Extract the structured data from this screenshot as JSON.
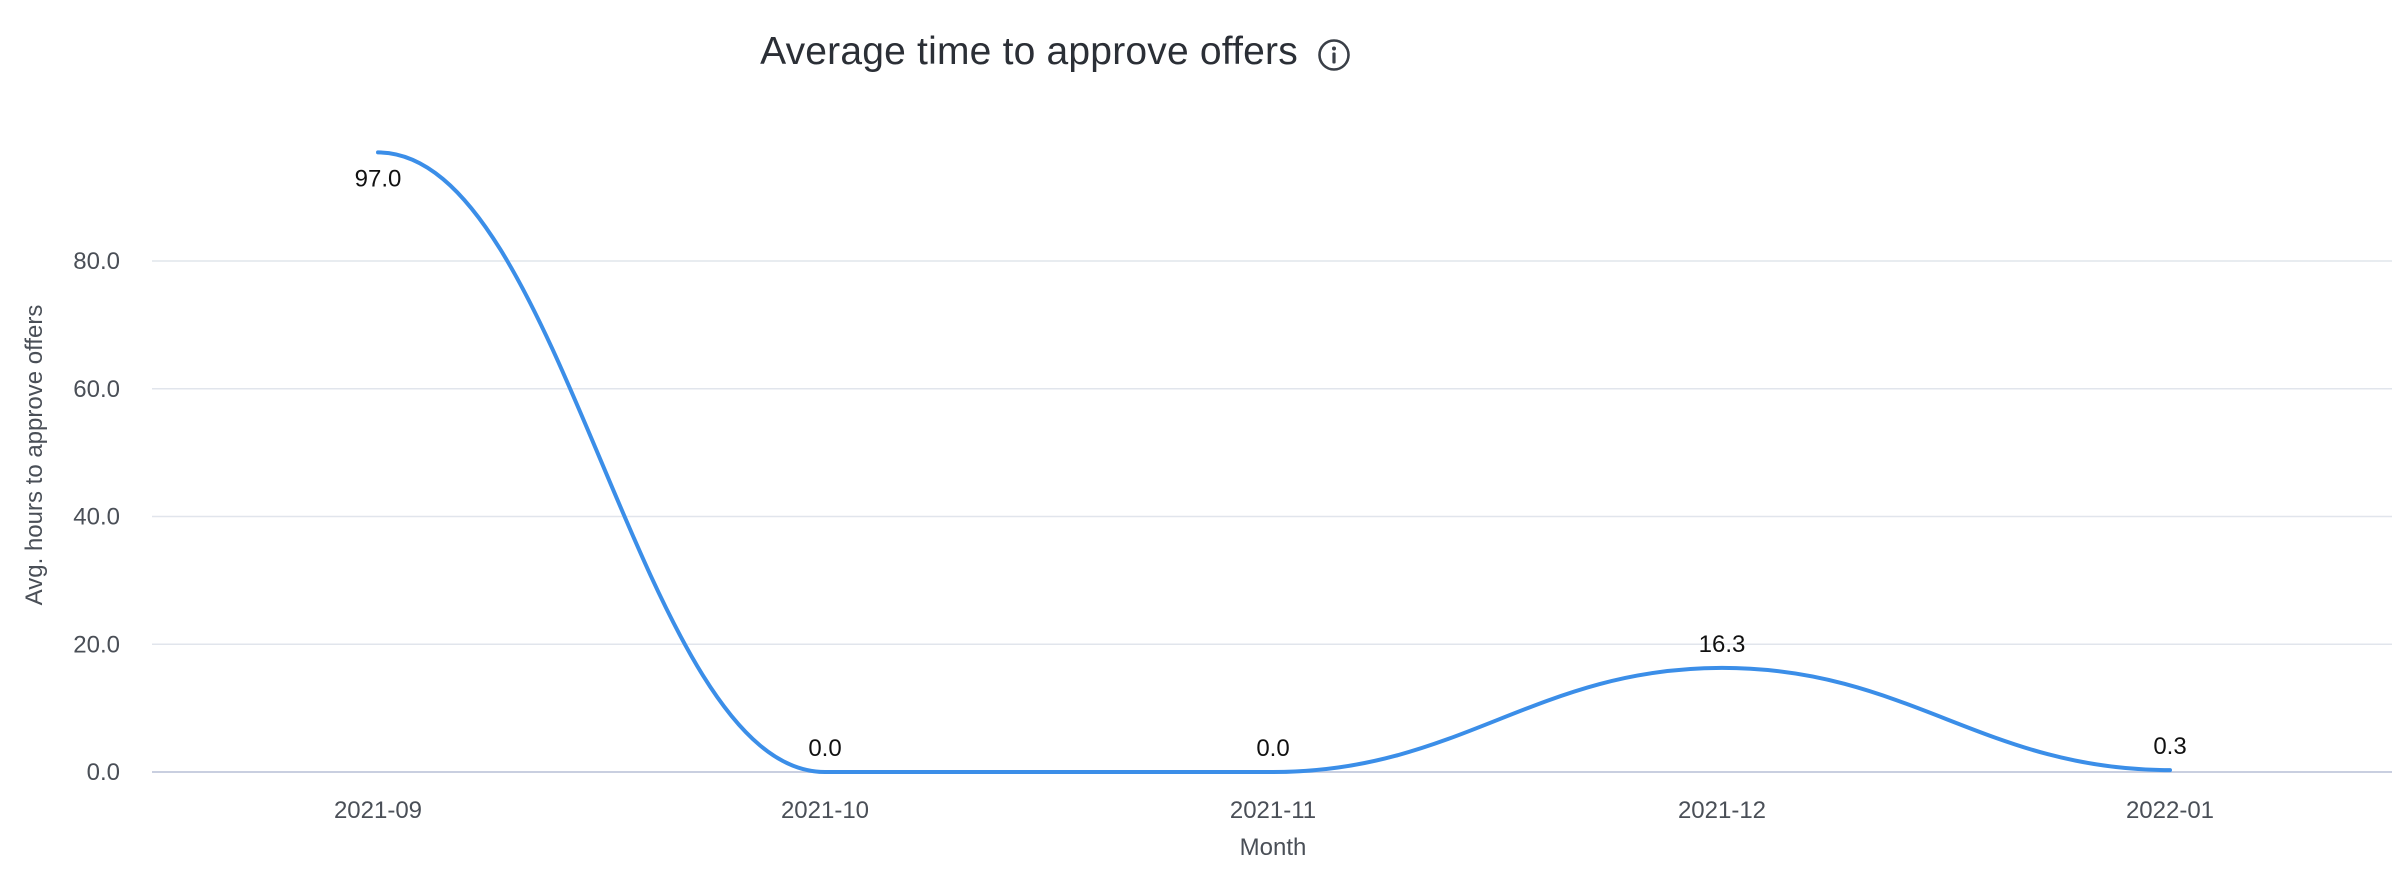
{
  "title": "Average time to approve offers",
  "icons": {
    "info": "info-icon"
  },
  "colors": {
    "line": "#3b8ee8",
    "grid": "#e1e5ec",
    "baseline": "#c9cfe0",
    "tick_text": "#4a4f57",
    "label_text": "#111111"
  },
  "chart_data": {
    "type": "line",
    "smooth": true,
    "title": "Average time to approve offers",
    "xlabel": "Month",
    "ylabel": "Avg. hours to approve offers",
    "categories": [
      "2021-09",
      "2021-10",
      "2021-11",
      "2021-12",
      "2022-01"
    ],
    "values": [
      97.0,
      0.0,
      0.0,
      16.3,
      0.3
    ],
    "data_labels": [
      "97.0",
      "0.0",
      "0.0",
      "16.3",
      "0.3"
    ],
    "ylim": [
      0,
      100
    ],
    "yticks": [
      0,
      20,
      40,
      60,
      80
    ],
    "ytick_labels": [
      "0.0",
      "20.0",
      "40.0",
      "60.0",
      "80.0"
    ],
    "grid": true,
    "legend": "none"
  }
}
